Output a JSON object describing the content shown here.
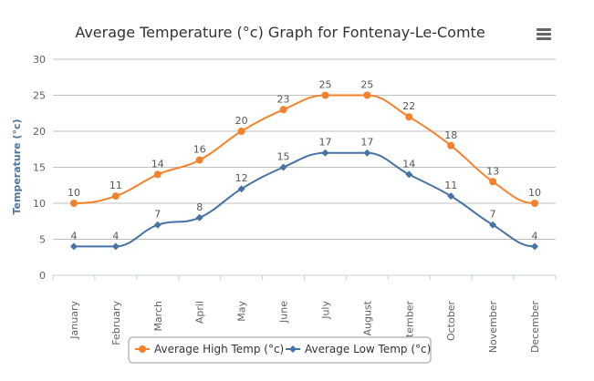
{
  "chart_data": {
    "type": "line",
    "title": "Average Temperature (°c) Graph for Fontenay-Le-Comte",
    "xlabel": "",
    "ylabel": "Temperature (°c)",
    "ylim": [
      0,
      30
    ],
    "yticks": [
      0,
      5,
      10,
      15,
      20,
      25,
      30
    ],
    "grid": true,
    "legend": "bottom",
    "categories": [
      "January",
      "February",
      "March",
      "April",
      "May",
      "June",
      "July",
      "August",
      "September",
      "October",
      "November",
      "December"
    ],
    "series": [
      {
        "name": "Average High Temp (°c)",
        "color": "#f7812a",
        "marker": "circle",
        "values": [
          10,
          11,
          14,
          16,
          20,
          23,
          25,
          25,
          22,
          18,
          13,
          10
        ]
      },
      {
        "name": "Average Low Temp (°c)",
        "color": "#4572a7",
        "marker": "diamond",
        "values": [
          4,
          4,
          7,
          8,
          12,
          15,
          17,
          17,
          14,
          11,
          7,
          4
        ]
      }
    ]
  },
  "menu_icon": "hamburger-menu-icon"
}
